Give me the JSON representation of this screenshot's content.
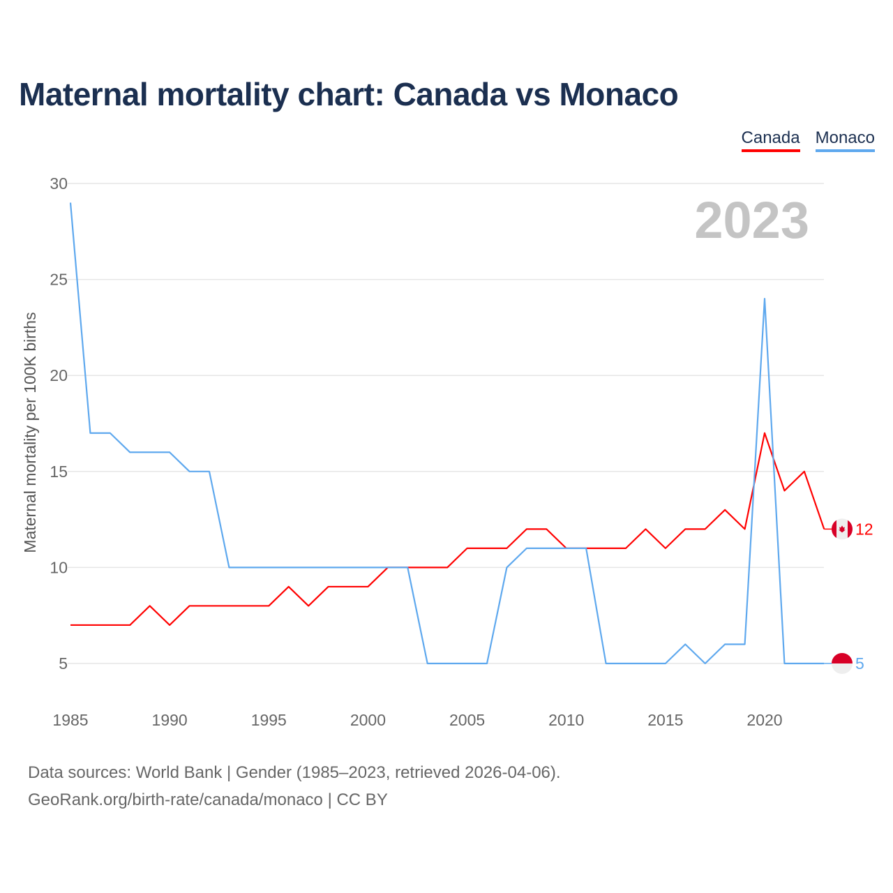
{
  "title": "Maternal mortality chart: Canada vs Monaco",
  "year_label": "2023",
  "footer": {
    "line1": "Data sources: World Bank | Gender (1985–2023, retrieved 2026-04-06).",
    "line2": "GeoRank.org/birth-rate/canada/monaco | CC BY"
  },
  "chart_data": {
    "type": "line",
    "title": "Maternal mortality chart: Canada vs Monaco",
    "xlabel": "",
    "ylabel": "Maternal mortality per 100K births",
    "xlim": [
      1985,
      2023
    ],
    "ylim": [
      3,
      30
    ],
    "x_ticks": [
      1985,
      1990,
      1995,
      2000,
      2005,
      2010,
      2015,
      2020
    ],
    "y_ticks": [
      5,
      10,
      15,
      20,
      25,
      30
    ],
    "grid": true,
    "legend_position": "top-right",
    "x": [
      1985,
      1986,
      1987,
      1988,
      1989,
      1990,
      1991,
      1992,
      1993,
      1994,
      1995,
      1996,
      1997,
      1998,
      1999,
      2000,
      2001,
      2002,
      2003,
      2004,
      2005,
      2006,
      2007,
      2008,
      2009,
      2010,
      2011,
      2012,
      2013,
      2014,
      2015,
      2016,
      2017,
      2018,
      2019,
      2020,
      2021,
      2022,
      2023
    ],
    "series": [
      {
        "name": "Canada",
        "color": "#ff0000",
        "end_label": "12",
        "values": [
          7,
          7,
          7,
          7,
          8,
          7,
          8,
          8,
          8,
          8,
          8,
          9,
          8,
          9,
          9,
          9,
          10,
          10,
          10,
          10,
          11,
          11,
          11,
          12,
          12,
          11,
          11,
          11,
          11,
          12,
          11,
          12,
          12,
          13,
          12,
          17,
          14,
          15,
          12
        ]
      },
      {
        "name": "Monaco",
        "color": "#5ea8ee",
        "end_label": "5",
        "values": [
          29,
          17,
          17,
          16,
          16,
          16,
          15,
          15,
          10,
          10,
          10,
          10,
          10,
          10,
          10,
          10,
          10,
          10,
          5,
          5,
          5,
          5,
          10,
          11,
          11,
          11,
          11,
          5,
          5,
          5,
          5,
          6,
          5,
          6,
          6,
          24,
          5,
          5,
          5
        ]
      }
    ]
  }
}
